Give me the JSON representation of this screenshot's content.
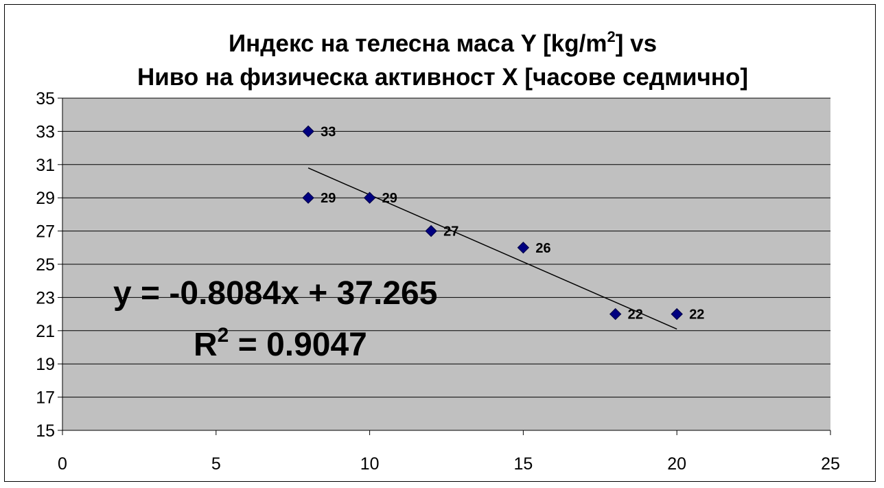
{
  "chart_data": {
    "type": "scatter",
    "title": {
      "line1_main": "Индекс на телесна маса Y [kg/m",
      "line1_sup": "2",
      "line1_tail": "] vs",
      "line2": "Ниво на физическа активност X [часове седмично]"
    },
    "xlabel": "",
    "ylabel": "",
    "xlim": [
      0,
      25
    ],
    "ylim": [
      15,
      35
    ],
    "x_ticks": [
      "0",
      "5",
      "10",
      "15",
      "20",
      "25"
    ],
    "y_ticks": [
      "15",
      "17",
      "19",
      "21",
      "23",
      "25",
      "27",
      "29",
      "31",
      "33",
      "35"
    ],
    "grid": "horizontal",
    "legend": "none",
    "series": [
      {
        "points": [
          {
            "x": 8,
            "y": 33,
            "label": "33"
          },
          {
            "x": 8,
            "y": 29,
            "label": "29"
          },
          {
            "x": 10,
            "y": 29,
            "label": "29"
          },
          {
            "x": 12,
            "y": 27,
            "label": "27"
          },
          {
            "x": 15,
            "y": 26,
            "label": "26"
          },
          {
            "x": 18,
            "y": 22,
            "label": "22"
          },
          {
            "x": 20,
            "y": 22,
            "label": "22"
          }
        ]
      }
    ],
    "trendline": {
      "type": "linear",
      "slope": -0.8084,
      "intercept": 37.265,
      "x_range": [
        8,
        20
      ]
    },
    "equation_text": "y = -0.8084x + 37.265",
    "r2_text": {
      "prefix": "R",
      "sup": "2",
      "suffix": " = 0.9047"
    },
    "colors": {
      "plot_area": "#c0c0c0",
      "marker": "#000080",
      "gridline": "#000000",
      "trendline": "#000000"
    }
  }
}
